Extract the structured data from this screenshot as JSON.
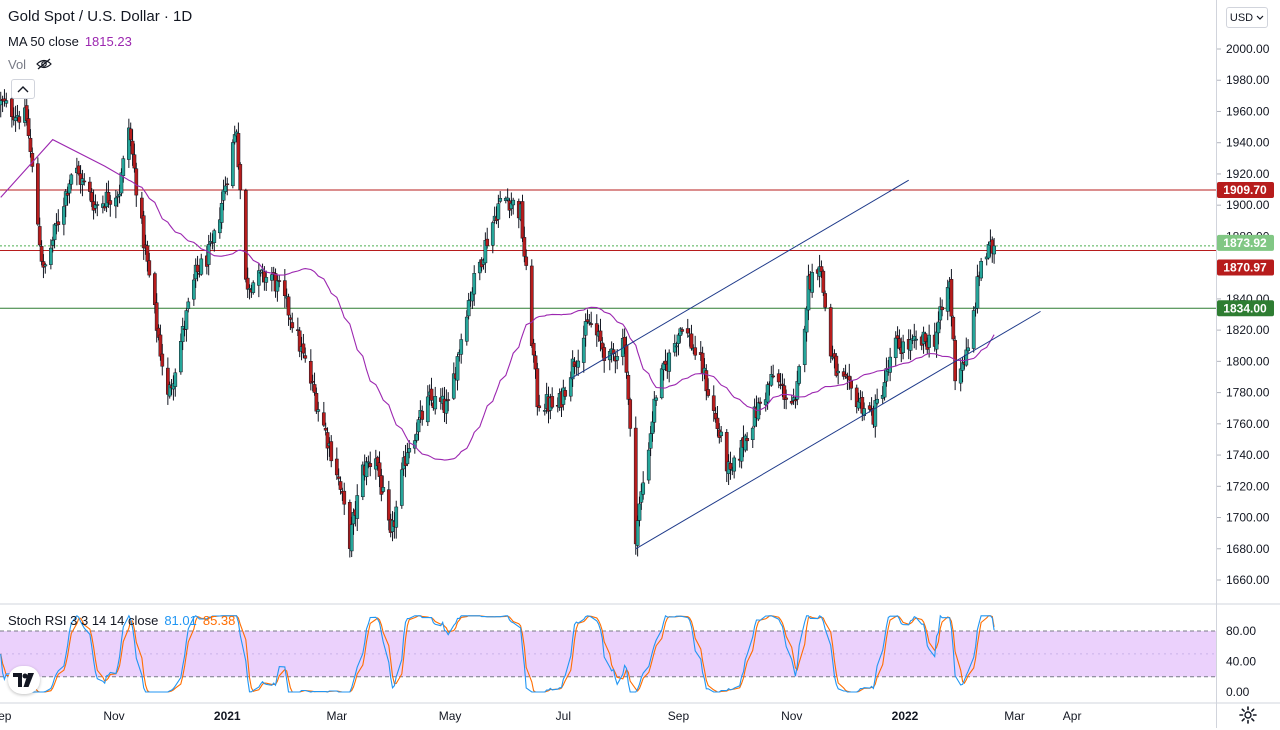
{
  "header": {
    "symbol_title": "Gold Spot / U.S. Dollar · 1D",
    "ma_label": "MA 50 close",
    "ma_value": "1815.23",
    "vol_label": "Vol"
  },
  "currency_button": "USD",
  "stoch_legend": {
    "label": "Stoch RSI 3 3 14 14 close",
    "k_value": "81.01",
    "d_value": "85.38"
  },
  "chart_data": [
    {
      "type": "candlestick",
      "y_axis": {
        "ticks": [
          1660,
          1680,
          1700,
          1720,
          1740,
          1760,
          1780,
          1800,
          1820,
          1840,
          1860,
          1880,
          1900,
          1920,
          1940,
          1960,
          1980,
          2000
        ],
        "ylim": [
          1650,
          2010
        ]
      },
      "x_axis": {
        "tick_labels": [
          "Sep",
          "Nov",
          "2021",
          "Mar",
          "May",
          "Jul",
          "Sep",
          "Nov",
          "2022",
          "Mar",
          "Apr"
        ],
        "bold_labels": [
          "2021",
          "2022"
        ]
      },
      "price_path": [
        [
          "2020-09-01",
          1965
        ],
        [
          "2020-09-15",
          1955
        ],
        [
          "2020-09-24",
          1856
        ],
        [
          "2020-10-10",
          1925
        ],
        [
          "2020-10-22",
          1900
        ],
        [
          "2020-11-04",
          1910
        ],
        [
          "2020-11-09",
          1950
        ],
        [
          "2020-11-16",
          1885
        ],
        [
          "2020-11-30",
          1776
        ],
        [
          "2020-12-15",
          1855
        ],
        [
          "2020-12-24",
          1872
        ],
        [
          "2021-01-06",
          1950
        ],
        [
          "2021-01-11",
          1850
        ],
        [
          "2021-01-25",
          1855
        ],
        [
          "2021-02-04",
          1830
        ],
        [
          "2021-02-18",
          1775
        ],
        [
          "2021-03-01",
          1730
        ],
        [
          "2021-03-08",
          1685
        ],
        [
          "2021-03-15",
          1730
        ],
        [
          "2021-03-22",
          1740
        ],
        [
          "2021-03-30",
          1685
        ],
        [
          "2021-04-08",
          1745
        ],
        [
          "2021-04-20",
          1775
        ],
        [
          "2021-04-30",
          1770
        ],
        [
          "2021-05-10",
          1835
        ],
        [
          "2021-05-20",
          1875
        ],
        [
          "2021-05-27",
          1900
        ],
        [
          "2021-06-01",
          1905
        ],
        [
          "2021-06-08",
          1895
        ],
        [
          "2021-06-17",
          1775
        ],
        [
          "2021-06-28",
          1770
        ],
        [
          "2021-07-05",
          1795
        ],
        [
          "2021-07-15",
          1825
        ],
        [
          "2021-07-26",
          1800
        ],
        [
          "2021-08-03",
          1815
        ],
        [
          "2021-08-09",
          1690
        ],
        [
          "2021-08-20",
          1780
        ],
        [
          "2021-09-03",
          1825
        ],
        [
          "2021-09-14",
          1795
        ],
        [
          "2021-09-29",
          1725
        ],
        [
          "2021-10-08",
          1755
        ],
        [
          "2021-10-22",
          1790
        ],
        [
          "2021-11-03",
          1770
        ],
        [
          "2021-11-10",
          1850
        ],
        [
          "2021-11-16",
          1865
        ],
        [
          "2021-11-22",
          1805
        ],
        [
          "2021-11-26",
          1790
        ],
        [
          "2021-12-03",
          1780
        ],
        [
          "2021-12-15",
          1765
        ],
        [
          "2021-12-27",
          1810
        ],
        [
          "2022-01-05",
          1810
        ],
        [
          "2022-01-17",
          1815
        ],
        [
          "2022-01-25",
          1850
        ],
        [
          "2022-01-28",
          1792
        ],
        [
          "2022-02-04",
          1805
        ],
        [
          "2022-02-11",
          1865
        ],
        [
          "2022-02-18",
          1873
        ]
      ],
      "horizontal_lines": [
        {
          "value": 1909.7,
          "label": "1909.70",
          "color": "#b71c1c"
        },
        {
          "value": 1873.92,
          "label": "1873.92",
          "color": "#4caf50",
          "style": "dotted"
        },
        {
          "value": 1870.97,
          "label": "1870.97",
          "color": "#b71c1c"
        },
        {
          "value": 1834.0,
          "label": "1834.00",
          "color": "#2e7d32"
        }
      ],
      "trend_lines": [
        {
          "from": [
            "2021-08-09",
            1680
          ],
          "to": [
            "2022-03-15",
            1832
          ],
          "color": "#1e3a8a"
        },
        {
          "from": [
            "2021-07-05",
            1789
          ],
          "to": [
            "2022-01-03",
            1916
          ],
          "color": "#1e3a8a"
        }
      ],
      "series": [
        {
          "name": "MA 50 close",
          "color": "#9c27b0",
          "last_value": 1815.23
        }
      ],
      "colors": {
        "up": "#26a69a",
        "down": "#b71c1c",
        "ma": "#9c27b0"
      }
    },
    {
      "type": "line",
      "name": "Stoch RSI 3 3 14 14 close",
      "y_axis": {
        "ticks": [
          0,
          40,
          80
        ],
        "tick_labels": [
          "0.00",
          "40.00",
          "80.00"
        ],
        "ylim": [
          -10,
          110
        ],
        "band": [
          20,
          80
        ]
      },
      "series": [
        {
          "name": "K",
          "color": "#2196f3",
          "last_value": 81.01
        },
        {
          "name": "D",
          "color": "#ff6d00",
          "last_value": 85.38
        }
      ],
      "band_color": "#e8c9fb"
    }
  ]
}
